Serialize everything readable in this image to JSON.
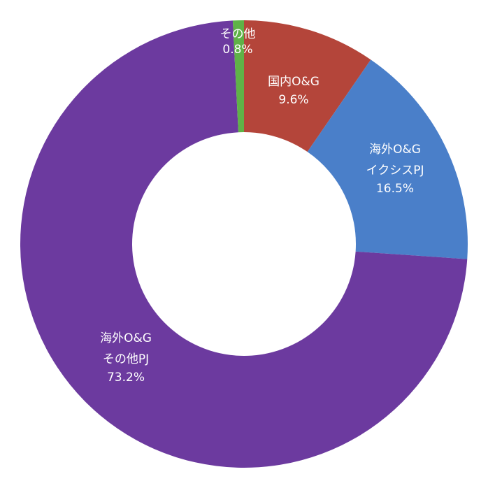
{
  "chart_data": {
    "type": "donut",
    "categories": [
      "国内O&G",
      "海外O&G\nイクシスPJ",
      "海外O&G\nその他PJ",
      "その他"
    ],
    "values": [
      9.6,
      16.5,
      73.2,
      0.8
    ],
    "value_labels": [
      "9.6%",
      "16.5%",
      "73.2%",
      "0.8%"
    ],
    "colors": [
      "#b4453a",
      "#4a7fc9",
      "#6c3a9f",
      "#5fb247"
    ]
  }
}
